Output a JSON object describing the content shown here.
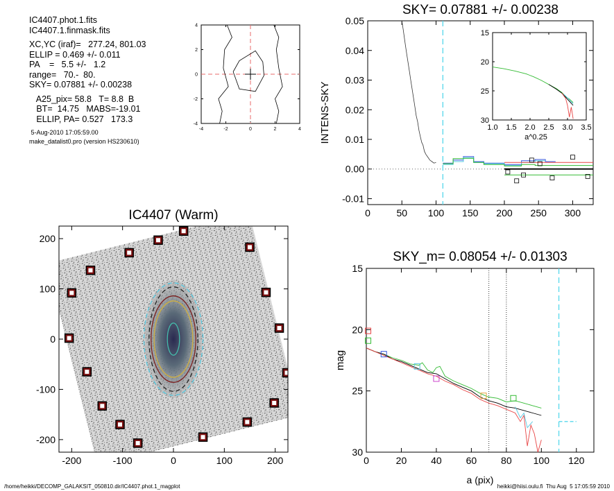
{
  "info": {
    "lines_a": [
      "IC4407.phot.1.fits",
      "IC4407.1.finmask.fits"
    ],
    "lines_b": [
      "XC,YC (iraf)=   277.24, 801.03",
      "ELLIP = 0.469 +/- 0.011",
      "PA    =   5.5 +/-   1.2",
      "range=   70.-  80.",
      "SKY= 0.07881 +/- 0.00238"
    ],
    "lines_c": [
      "   A25_pix= 58.8   T= 8.8  B",
      "   BT=  14.75   MABS=-19.01",
      "   ELLIP, PA= 0.527   173.3"
    ],
    "timestamp": " 5-Aug-2010 17:05:59.00",
    "program": "make_datalist0.pro (version HS230610)"
  },
  "footer": {
    "left": "/home/heikki/DECOMP_GALAKSIT_050810.dir/IC4407.phot.1_magplot",
    "right": "heikki@hiisi.oulu.fi  Thu Aug  5 17:05:59 2010"
  },
  "chart_data": [
    {
      "id": "center-contour",
      "type": "line",
      "title": "",
      "xlim": [
        -4,
        4
      ],
      "ylim": [
        -4,
        4
      ],
      "xticks": [
        "-4",
        "-2",
        "0",
        "2",
        "4"
      ],
      "yticks": [
        "-4",
        "-2",
        "0",
        "2",
        "4"
      ],
      "center_marker": [
        0,
        0
      ],
      "dashed_lines": {
        "x": 0,
        "y": 0,
        "color": "#e86a6a"
      },
      "contours": [
        [
          [
            -1.4,
            0.2
          ],
          [
            -0.9,
            1.1
          ],
          [
            0.4,
            1.9
          ],
          [
            1.0,
            1.0
          ],
          [
            1.1,
            -0.1
          ],
          [
            0.4,
            -1.4
          ],
          [
            -0.9,
            -1.2
          ],
          [
            -1.4,
            0.2
          ]
        ],
        [
          [
            -1.9,
            4
          ],
          [
            -1.5,
            3.0
          ],
          [
            -2.1,
            2.0
          ],
          [
            -2.2,
            0.5
          ],
          [
            -1.8,
            -1.0
          ],
          [
            -2.6,
            -2.0
          ],
          [
            -2.3,
            -3.0
          ],
          [
            -2.5,
            -4
          ]
        ],
        [
          [
            1.9,
            4
          ],
          [
            2.3,
            3.0
          ],
          [
            2.1,
            2.0
          ],
          [
            2.3,
            0.5
          ],
          [
            2.6,
            -1.0
          ],
          [
            2.0,
            -2.0
          ],
          [
            2.3,
            -3.0
          ],
          [
            2.1,
            -4
          ]
        ]
      ]
    },
    {
      "id": "sky-profile",
      "type": "line",
      "title": "SKY= 0.07881 +/- 0.00238",
      "xlabel": "",
      "ylabel": "INTENS-SKY",
      "xlim": [
        0,
        330
      ],
      "ylim": [
        -0.012,
        0.05
      ],
      "xticks": [
        "0",
        "50",
        "100",
        "150",
        "200",
        "250",
        "300"
      ],
      "yticks": [
        "-0.01",
        "0.00",
        "0.01",
        "0.02",
        "0.03",
        "0.04",
        "0.05"
      ],
      "zero_line": true,
      "vline_cyan": 110,
      "intensity_x": [
        50,
        52,
        55,
        57,
        59,
        61,
        63,
        65,
        67,
        69,
        71,
        73,
        75,
        77,
        79,
        81,
        83,
        85,
        88,
        91,
        94,
        97,
        100
      ],
      "intensity_y": [
        0.05,
        0.047,
        0.042,
        0.039,
        0.036,
        0.033,
        0.03,
        0.027,
        0.024,
        0.021,
        0.018,
        0.016,
        0.013,
        0.011,
        0.009,
        0.008,
        0.006,
        0.005,
        0.004,
        0.003,
        0.0025,
        0.002,
        0.0022
      ],
      "series": [
        {
          "color": "#3355dd",
          "x": [
            110,
            125,
            125,
            140,
            140,
            155,
            155,
            170,
            170,
            200,
            200,
            225,
            225,
            245,
            245,
            260,
            260,
            275
          ],
          "y": [
            0.002,
            0.002,
            0.003,
            0.003,
            0.0042,
            0.0042,
            0.0025,
            0.0025,
            0.002,
            0.002,
            0.0015,
            0.0015,
            0.0028,
            0.0028,
            0.0032,
            0.0032,
            0.0025,
            0.0025
          ]
        },
        {
          "color": "#55c8e0",
          "x": [
            110,
            125,
            125,
            140,
            140,
            155,
            155,
            170,
            170,
            200,
            200,
            225,
            225,
            245,
            245,
            260
          ],
          "y": [
            0.0015,
            0.0015,
            0.0025,
            0.0025,
            0.0038,
            0.0038,
            0.0022,
            0.0022,
            0.0018,
            0.0018,
            0.0012,
            0.0012,
            0.0022,
            0.0022,
            0.0028,
            0.0028
          ]
        },
        {
          "color": "#33bb33",
          "x": [
            110,
            125,
            125,
            140,
            140,
            155,
            155,
            170,
            170,
            200,
            200,
            225,
            225,
            245,
            245,
            330
          ],
          "y": [
            0.0018,
            0.0018,
            0.0035,
            0.0035,
            0.0036,
            0.0036,
            0.0022,
            0.0022,
            0.0015,
            0.0015,
            0.001,
            0.001,
            0.0015,
            0.0015,
            0.0012,
            0.0012
          ]
        },
        {
          "color": "#e84444",
          "x": [
            200,
            330
          ],
          "y": [
            0.0022,
            0.0022
          ]
        },
        {
          "color": "#000000",
          "x": [
            200,
            330
          ],
          "y": [
            0.0,
            0.0
          ]
        },
        {
          "color": "#33bb33",
          "x": [
            200,
            330
          ],
          "y": [
            -0.002,
            -0.002
          ]
        }
      ],
      "points": [
        [
          205,
          -0.001
        ],
        [
          218,
          -0.004
        ],
        [
          228,
          -0.002
        ],
        [
          240,
          0.003
        ],
        [
          252,
          0.0018
        ],
        [
          270,
          -0.003
        ],
        [
          300,
          0.004
        ],
        [
          322,
          -0.0025
        ]
      ],
      "inset": {
        "xlim": [
          1.0,
          3.5
        ],
        "ylim": [
          15,
          30
        ],
        "invert_y": true,
        "xlabel": "a^0.25",
        "xticks": [
          "1.0",
          "1.5",
          "2.0",
          "2.5",
          "3.0",
          "3.5"
        ],
        "yticks": [
          "15",
          "20",
          "25",
          "30"
        ],
        "series": [
          {
            "color": "#33bb33",
            "x": [
              1.0,
              1.3,
              1.6,
              1.9,
              2.1,
              2.3,
              2.5,
              2.7,
              2.85,
              2.95,
              3.05,
              3.15
            ],
            "y": [
              20.9,
              21.2,
              21.6,
              22.1,
              22.6,
              23.2,
              23.9,
              24.6,
              25.3,
              26.0,
              26.4,
              27.0
            ]
          },
          {
            "color": "#000000",
            "x": [
              2.5,
              2.7,
              2.85,
              2.95,
              3.05,
              3.15
            ],
            "y": [
              23.9,
              24.7,
              25.4,
              26.1,
              26.8,
              27.5
            ]
          },
          {
            "color": "#e84444",
            "x": [
              2.85,
              2.95,
              3.0,
              3.05,
              3.1,
              3.15
            ],
            "y": [
              25.4,
              26.3,
              27.5,
              29.5,
              27.8,
              29.8
            ]
          },
          {
            "color": "#55c8e0",
            "x": [
              2.9,
              3.0,
              3.1,
              3.15
            ],
            "y": [
              25.6,
              26.2,
              26.9,
              27.2
            ]
          }
        ]
      }
    },
    {
      "id": "galaxy-image",
      "type": "scatter",
      "title": "IC4407 (Warm)",
      "xlim": [
        -225,
        225
      ],
      "ylim": [
        -225,
        225
      ],
      "xticks": [
        "-200",
        "-100",
        "0",
        "100",
        "200"
      ],
      "yticks": [
        "-200",
        "-100",
        "0",
        "100",
        "200"
      ],
      "masked_stars": [
        [
          20,
          215
        ],
        [
          -30,
          197
        ],
        [
          -87,
          172
        ],
        [
          -163,
          137
        ],
        [
          -200,
          92
        ],
        [
          150,
          183
        ],
        [
          182,
          93
        ],
        [
          208,
          22
        ],
        [
          -205,
          2
        ],
        [
          -170,
          -65
        ],
        [
          223,
          -67
        ],
        [
          -140,
          -133
        ],
        [
          198,
          -127
        ],
        [
          -105,
          -170
        ],
        [
          145,
          -165
        ],
        [
          58,
          -195
        ],
        [
          -70,
          -207
        ]
      ],
      "ellipses": [
        {
          "color": "#55c8e0",
          "rx": 58,
          "ry": 112,
          "dash": true
        },
        {
          "color": "#222222",
          "rx": 48,
          "ry": 104,
          "dash": true
        },
        {
          "color": "#7b1f1f",
          "rx": 44,
          "ry": 86,
          "dash": false
        },
        {
          "color": "#d0b040",
          "rx": 38,
          "ry": 76,
          "dash": false
        },
        {
          "color": "#44bbaa",
          "rx": 12,
          "ry": 32,
          "dash": false
        }
      ]
    },
    {
      "id": "mag-profile",
      "type": "line",
      "title": "SKY_m=  0.08054 +/- 0.01303",
      "xlabel": "a (pix)",
      "ylabel": "mag",
      "xlim": [
        0,
        130
      ],
      "ylim": [
        15,
        30
      ],
      "invert_y": true,
      "xticks": [
        "0",
        "20",
        "40",
        "60",
        "80",
        "100",
        "120"
      ],
      "yticks": [
        "15",
        "20",
        "25",
        "30"
      ],
      "vlines_dotted": [
        70,
        80
      ],
      "vline_cyan": 110,
      "sky_segment": {
        "x": [
          110,
          120
        ],
        "y": 27.5
      },
      "series": [
        {
          "color": "#33bb33",
          "x": [
            0,
            5,
            10,
            15,
            20,
            25,
            30,
            32,
            35,
            38,
            40,
            42,
            45,
            50,
            55,
            60,
            65,
            68,
            70,
            75,
            80,
            85,
            90,
            95,
            100
          ],
          "y": [
            21.5,
            21.8,
            22.0,
            22.3,
            22.5,
            22.8,
            22.9,
            22.7,
            23.3,
            23.5,
            23.1,
            23.0,
            23.8,
            24.2,
            24.5,
            24.8,
            25.2,
            25.4,
            25.5,
            25.6,
            25.9,
            25.8,
            26.0,
            26.2,
            26.4
          ]
        },
        {
          "color": "#000000",
          "x": [
            0,
            5,
            10,
            15,
            20,
            25,
            30,
            35,
            40,
            45,
            50,
            55,
            60,
            65,
            70,
            75,
            80,
            85,
            90,
            95,
            100
          ],
          "y": [
            21.5,
            21.8,
            22.0,
            22.4,
            22.6,
            22.9,
            23.2,
            23.5,
            23.6,
            24.0,
            24.4,
            24.7,
            25.0,
            25.5,
            25.8,
            26.0,
            26.3,
            26.4,
            26.6,
            26.8,
            27.0
          ]
        },
        {
          "color": "#e84444",
          "x": [
            0,
            5,
            10,
            15,
            20,
            25,
            30,
            35,
            40,
            45,
            50,
            55,
            60,
            65,
            70,
            75,
            80,
            85,
            88,
            90,
            92,
            94,
            96,
            98,
            100
          ],
          "y": [
            21.5,
            21.8,
            22.1,
            22.4,
            22.7,
            23.0,
            23.3,
            23.6,
            23.8,
            24.2,
            24.5,
            24.9,
            25.2,
            25.7,
            26.0,
            26.2,
            26.5,
            26.8,
            27.5,
            27.0,
            29.5,
            27.8,
            28.5,
            30,
            29.0
          ]
        },
        {
          "color": "#55c8e0",
          "x": [
            85,
            88,
            90,
            92,
            95
          ],
          "y": [
            26.3,
            27.2,
            26.8,
            28.0,
            27.5
          ]
        }
      ],
      "square_markers": [
        {
          "x": 1,
          "y": 20.1,
          "color": "#e84444"
        },
        {
          "x": 1,
          "y": 20.9,
          "color": "#33bb33"
        },
        {
          "x": 10,
          "y": 22.0,
          "color": "#3355dd"
        },
        {
          "x": 29,
          "y": 23.0,
          "color": "#55c8e0"
        },
        {
          "x": 40,
          "y": 24.0,
          "color": "#cc44cc"
        },
        {
          "x": 67,
          "y": 25.4,
          "color": "#e8a040"
        },
        {
          "x": 84,
          "y": 25.6,
          "color": "#33bb33"
        }
      ]
    }
  ]
}
